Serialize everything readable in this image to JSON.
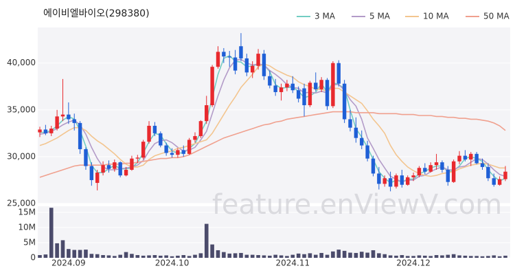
{
  "chart_data": {
    "type": "candlestick",
    "title": "에이비엘바이오(298380)",
    "watermark": "feature.enViewV.com",
    "up_color": "#e8292e",
    "down_color": "#1f5fd6",
    "grid": true,
    "ylim": [
      25000,
      43800
    ],
    "yticks": [
      {
        "value": 25000,
        "label": "25,000"
      },
      {
        "value": 30000,
        "label": "30,000"
      },
      {
        "value": 35000,
        "label": "35,000"
      },
      {
        "value": 40000,
        "label": "40,000"
      }
    ],
    "categories": [
      null,
      null,
      null,
      null,
      null,
      "2024.09",
      null,
      null,
      null,
      null,
      null,
      null,
      null,
      null,
      null,
      null,
      null,
      null,
      null,
      null,
      null,
      null,
      null,
      "2024.10",
      null,
      null,
      null,
      null,
      null,
      null,
      null,
      null,
      null,
      null,
      null,
      null,
      null,
      null,
      null,
      null,
      null,
      null,
      null,
      null,
      "2024.11",
      null,
      null,
      null,
      null,
      null,
      null,
      null,
      null,
      null,
      null,
      null,
      null,
      null,
      null,
      null,
      null,
      null,
      null,
      null,
      null,
      "2024.12",
      null,
      null,
      null,
      null,
      null,
      null,
      null,
      null,
      null,
      null,
      null,
      null,
      null,
      null,
      null,
      null
    ],
    "ohlc": [
      [
        32600,
        33200,
        32100,
        32900
      ],
      [
        32900,
        33400,
        32300,
        32500
      ],
      [
        32500,
        33300,
        32200,
        33000
      ],
      [
        33000,
        35000,
        32800,
        34300
      ],
      [
        34300,
        38300,
        33800,
        34500
      ],
      [
        34500,
        35800,
        33500,
        34000
      ],
      [
        34000,
        34600,
        32800,
        33600
      ],
      [
        33600,
        33800,
        30300,
        30800
      ],
      [
        30800,
        31000,
        28600,
        29000
      ],
      [
        29000,
        29400,
        26900,
        27500
      ],
      [
        27200,
        28600,
        26400,
        28300
      ],
      [
        28300,
        29500,
        28000,
        29100
      ],
      [
        29100,
        29600,
        28300,
        28700
      ],
      [
        28700,
        29700,
        28400,
        29400
      ],
      [
        29400,
        29500,
        27800,
        28000
      ],
      [
        28000,
        28900,
        27900,
        28600
      ],
      [
        28600,
        30100,
        28500,
        29800
      ],
      [
        29800,
        30200,
        29300,
        29900
      ],
      [
        29900,
        31800,
        29700,
        31600
      ],
      [
        31600,
        33800,
        31400,
        33300
      ],
      [
        33300,
        33700,
        32200,
        32500
      ],
      [
        32500,
        32700,
        31000,
        31200
      ],
      [
        31200,
        31500,
        30100,
        30400
      ],
      [
        30400,
        30900,
        29900,
        30200
      ],
      [
        30200,
        30900,
        29900,
        30700
      ],
      [
        30700,
        31200,
        30000,
        30300
      ],
      [
        30300,
        32000,
        30200,
        31800
      ],
      [
        31800,
        32600,
        31500,
        32200
      ],
      [
        32200,
        33900,
        32000,
        33800
      ],
      [
        33800,
        36500,
        33500,
        35500
      ],
      [
        35500,
        39800,
        35300,
        39600
      ],
      [
        39600,
        41800,
        39400,
        41200
      ],
      [
        41200,
        41600,
        40000,
        40700
      ],
      [
        40700,
        41300,
        39600,
        40600
      ],
      [
        40600,
        41400,
        38800,
        39200
      ],
      [
        41800,
        43200,
        40200,
        40500
      ],
      [
        40500,
        41000,
        38600,
        39000
      ],
      [
        39000,
        40200,
        38400,
        39700
      ],
      [
        39700,
        41500,
        39300,
        41000
      ],
      [
        41000,
        41400,
        38200,
        38600
      ],
      [
        38600,
        39200,
        37300,
        37600
      ],
      [
        37600,
        38300,
        36500,
        36900
      ],
      [
        36900,
        37800,
        36000,
        37400
      ],
      [
        37400,
        38200,
        37000,
        37800
      ],
      [
        37800,
        38600,
        36800,
        37100
      ],
      [
        37100,
        37500,
        35800,
        36200
      ],
      [
        37300,
        37800,
        34300,
        35500
      ],
      [
        35500,
        38100,
        35300,
        37900
      ],
      [
        37900,
        39000,
        37000,
        37200
      ],
      [
        37200,
        38500,
        36900,
        38200
      ],
      [
        38200,
        38400,
        35000,
        35400
      ],
      [
        35400,
        40200,
        35200,
        40000
      ],
      [
        40000,
        40300,
        37500,
        37800
      ],
      [
        37800,
        38200,
        33600,
        34000
      ],
      [
        34000,
        35000,
        32700,
        33100
      ],
      [
        33100,
        34200,
        31500,
        32000
      ],
      [
        32000,
        32800,
        30800,
        31200
      ],
      [
        31200,
        31700,
        29500,
        29800
      ],
      [
        29800,
        30100,
        27900,
        28200
      ],
      [
        28200,
        28900,
        26500,
        27100
      ],
      [
        27100,
        28000,
        26800,
        27700
      ],
      [
        27700,
        28400,
        26300,
        26800
      ],
      [
        26800,
        28200,
        26600,
        28000
      ],
      [
        28000,
        28600,
        26700,
        27000
      ],
      [
        27000,
        28000,
        26900,
        27800
      ],
      [
        27800,
        28300,
        27400,
        28000
      ],
      [
        28000,
        29000,
        27800,
        28800
      ],
      [
        28800,
        29300,
        28100,
        28400
      ],
      [
        28400,
        29400,
        28300,
        29100
      ],
      [
        29100,
        30300,
        28600,
        29400
      ],
      [
        29400,
        29600,
        28300,
        28600
      ],
      [
        28600,
        29000,
        26900,
        27300
      ],
      [
        27300,
        29700,
        27200,
        29500
      ],
      [
        29500,
        30600,
        29200,
        30100
      ],
      [
        30100,
        30700,
        29500,
        29700
      ],
      [
        29700,
        30500,
        29000,
        30300
      ],
      [
        30300,
        30500,
        29200,
        29300
      ],
      [
        29300,
        29800,
        28600,
        28900
      ],
      [
        28900,
        29300,
        27400,
        27700
      ],
      [
        27700,
        28200,
        26800,
        27000
      ],
      [
        27000,
        27900,
        26900,
        27600
      ],
      [
        27600,
        29000,
        27400,
        28400
      ]
    ],
    "series": [
      {
        "name": "3 MA",
        "color": "#72cdc3",
        "values": [
          32600,
          32600,
          32800,
          33300,
          33900,
          34300,
          34000,
          32800,
          31100,
          29100,
          28300,
          28300,
          28700,
          29100,
          28700,
          28700,
          28800,
          29400,
          30400,
          31600,
          32500,
          32300,
          31400,
          30600,
          30400,
          30400,
          30900,
          31400,
          32600,
          33800,
          36300,
          38800,
          40500,
          40800,
          40200,
          40100,
          39600,
          39700,
          39900,
          39800,
          39100,
          37700,
          37300,
          37400,
          37400,
          37000,
          36300,
          36500,
          36900,
          37800,
          36900,
          37900,
          37700,
          37300,
          35000,
          33000,
          32100,
          31000,
          29700,
          28400,
          27700,
          27200,
          27500,
          27300,
          27600,
          27600,
          28200,
          28400,
          28800,
          29000,
          29000,
          28400,
          28500,
          29000,
          29800,
          30000,
          29800,
          29500,
          28600,
          27900,
          27400,
          27700
        ]
      },
      {
        "name": "5 MA",
        "color": "#b39bc8",
        "values": [
          32400,
          32500,
          32700,
          33000,
          33400,
          33700,
          33900,
          33400,
          32400,
          31000,
          29800,
          28900,
          28600,
          28600,
          28700,
          28800,
          28900,
          29100,
          29600,
          30600,
          31400,
          31700,
          31800,
          31500,
          31000,
          30600,
          30700,
          31000,
          31800,
          32700,
          34600,
          36500,
          38200,
          39500,
          40300,
          40400,
          40000,
          39800,
          39900,
          39800,
          39200,
          38800,
          38300,
          37700,
          37400,
          37300,
          36800,
          36900,
          36800,
          37000,
          36800,
          37700,
          37700,
          37100,
          36100,
          35400,
          34000,
          32000,
          30900,
          29700,
          28800,
          27900,
          27600,
          27300,
          27500,
          27500,
          27900,
          28000,
          28400,
          28700,
          28900,
          28600,
          28600,
          28900,
          29000,
          29400,
          29800,
          29700,
          29200,
          28600,
          28100,
          27900
        ]
      },
      {
        "name": "10 MA",
        "color": "#f3c58f",
        "values": [
          31200,
          31400,
          31700,
          32000,
          32400,
          32800,
          33100,
          33100,
          32800,
          32200,
          31700,
          31300,
          30800,
          30300,
          29700,
          29200,
          28900,
          28900,
          29100,
          29700,
          30100,
          30300,
          30500,
          30600,
          30900,
          31000,
          31200,
          31400,
          31600,
          31800,
          32500,
          33500,
          34500,
          35500,
          36400,
          37400,
          38100,
          38800,
          39600,
          39900,
          39700,
          39300,
          39000,
          38700,
          38500,
          38000,
          37700,
          37500,
          37200,
          37200,
          37000,
          37300,
          37300,
          36900,
          36500,
          36100,
          35700,
          34900,
          34000,
          33300,
          32500,
          31200,
          30200,
          29500,
          28900,
          28500,
          28200,
          28000,
          27900,
          28000,
          28200,
          28300,
          28400,
          28700,
          28900,
          29100,
          29200,
          29300,
          29200,
          29000,
          28800,
          28800
        ]
      },
      {
        "name": "50 MA",
        "color": "#f0a08e",
        "values": [
          27800,
          28000,
          28200,
          28400,
          28600,
          28800,
          29000,
          29100,
          29100,
          29100,
          29100,
          29100,
          29200,
          29200,
          29200,
          29300,
          29300,
          29400,
          29500,
          29600,
          29700,
          29800,
          29800,
          29900,
          29900,
          30000,
          30200,
          30500,
          30800,
          31100,
          31400,
          31700,
          32000,
          32200,
          32400,
          32600,
          32800,
          33000,
          33200,
          33400,
          33500,
          33700,
          33800,
          34000,
          34100,
          34200,
          34300,
          34400,
          34500,
          34600,
          34700,
          34800,
          34800,
          34800,
          34800,
          34700,
          34700,
          34700,
          34700,
          34600,
          34600,
          34600,
          34600,
          34500,
          34500,
          34500,
          34400,
          34400,
          34400,
          34300,
          34300,
          34200,
          34200,
          34100,
          34100,
          34000,
          34000,
          33900,
          33800,
          33600,
          33300,
          32800
        ]
      }
    ],
    "volume": {
      "color": "#4b4b6b",
      "ylim": [
        0,
        17000000
      ],
      "yticks": [
        0,
        {
          "value": 5000000,
          "label": "5M"
        },
        {
          "value": 10000000,
          "label": "10M"
        },
        {
          "value": 15000000,
          "label": "15M"
        }
      ],
      "values": [
        900000,
        1100000,
        16500000,
        4800000,
        5800000,
        2900000,
        2600000,
        2600000,
        2700000,
        1300000,
        1200000,
        900000,
        800000,
        600000,
        1000000,
        1900000,
        1300000,
        900000,
        700000,
        800000,
        900000,
        700000,
        800000,
        500000,
        700000,
        900000,
        600000,
        1000000,
        1500000,
        11200000,
        4400000,
        2500000,
        1900000,
        1400000,
        1500000,
        1600000,
        1000000,
        1000000,
        900000,
        800000,
        700000,
        1000000,
        800000,
        600000,
        1000000,
        1400000,
        1200000,
        1500000,
        1000000,
        1600000,
        1000000,
        2100000,
        2700000,
        2300000,
        1700000,
        1600000,
        2000000,
        1700000,
        2500000,
        1500000,
        1200000,
        800000,
        700000,
        900000,
        600000,
        600000,
        800000,
        700000,
        600000,
        900000,
        800000,
        1000000,
        1200000,
        800000,
        700000,
        600000,
        600000,
        500000,
        600000,
        800000,
        500000,
        700000
      ]
    }
  }
}
